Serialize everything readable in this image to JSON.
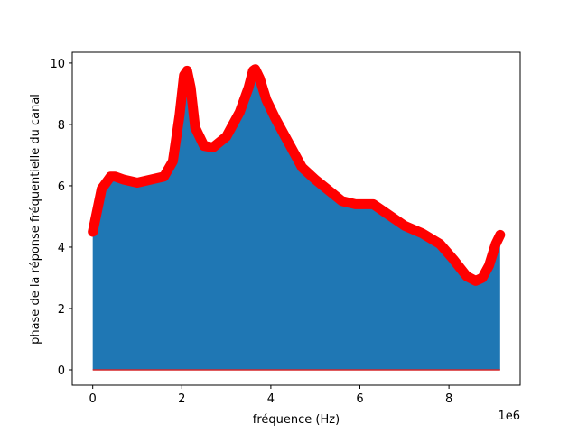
{
  "chart_data": {
    "type": "area",
    "title": "",
    "xlabel": "fréquence (Hz)",
    "ylabel": "phase de la réponse fréquentielle du canal",
    "x_offset_label": "1e6",
    "xlim": [
      -0.46,
      9.6
    ],
    "ylim": [
      -0.5,
      10.35
    ],
    "xticks": [
      0,
      2,
      4,
      6,
      8
    ],
    "yticks": [
      0,
      2,
      4,
      6,
      8,
      10
    ],
    "x_multiplier": 1000000,
    "grid": false,
    "legend": "none",
    "fill_color": "#1f77b4",
    "line_color": "#ff0000",
    "baseline_color": "#d62728",
    "x": [
      0,
      0.2,
      0.4,
      0.5,
      0.7,
      1.0,
      1.3,
      1.6,
      1.8,
      1.95,
      2.05,
      2.12,
      2.2,
      2.3,
      2.5,
      2.7,
      3.0,
      3.3,
      3.5,
      3.6,
      3.65,
      3.75,
      3.9,
      4.1,
      4.4,
      4.7,
      5.0,
      5.3,
      5.6,
      5.9,
      6.3,
      6.6,
      7.0,
      7.4,
      7.8,
      8.1,
      8.4,
      8.6,
      8.75,
      8.9,
      9.05,
      9.15
    ],
    "y": [
      4.5,
      5.9,
      6.3,
      6.3,
      6.2,
      6.1,
      6.2,
      6.3,
      6.8,
      8.3,
      9.6,
      9.75,
      9.2,
      7.9,
      7.3,
      7.25,
      7.6,
      8.4,
      9.2,
      9.75,
      9.8,
      9.5,
      8.8,
      8.2,
      7.4,
      6.6,
      6.2,
      5.85,
      5.5,
      5.4,
      5.4,
      5.1,
      4.7,
      4.45,
      4.1,
      3.6,
      3.05,
      2.9,
      3.0,
      3.4,
      4.1,
      4.4
    ]
  }
}
